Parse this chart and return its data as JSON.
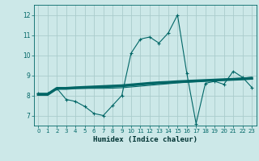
{
  "title": "",
  "xlabel": "Humidex (Indice chaleur)",
  "background_color": "#cce8e8",
  "grid_color": "#aacccc",
  "line_color": "#006666",
  "xlim": [
    -0.5,
    23.5
  ],
  "ylim": [
    6.5,
    12.5
  ],
  "xticks": [
    0,
    1,
    2,
    3,
    4,
    5,
    6,
    7,
    8,
    9,
    10,
    11,
    12,
    13,
    14,
    15,
    16,
    17,
    18,
    19,
    20,
    21,
    22,
    23
  ],
  "yticks": [
    7,
    8,
    9,
    10,
    11,
    12
  ],
  "line1_x": [
    0,
    1,
    2,
    3,
    4,
    5,
    6,
    7,
    8,
    9,
    10,
    11,
    12,
    13,
    14,
    15,
    16,
    17,
    18,
    19,
    20,
    21,
    22,
    23
  ],
  "line1_y": [
    8.1,
    8.1,
    8.35,
    7.8,
    7.7,
    7.45,
    7.1,
    7.0,
    7.5,
    8.0,
    10.1,
    10.8,
    10.9,
    10.6,
    11.1,
    12.0,
    9.1,
    6.6,
    8.6,
    8.7,
    8.55,
    9.2,
    8.9,
    8.4
  ],
  "line2_x": [
    0,
    2,
    23
  ],
  "line2_y": [
    8.05,
    8.35,
    8.85
  ],
  "line3_x": [
    0,
    2,
    23
  ],
  "line3_y": [
    8.05,
    8.35,
    8.9
  ],
  "line2_full_x": [
    0,
    1,
    2,
    3,
    4,
    5,
    6,
    7,
    8,
    9,
    10,
    11,
    12,
    13,
    14,
    15,
    16,
    17,
    18,
    19,
    20,
    21,
    22,
    23
  ],
  "line2_full_y": [
    8.05,
    8.05,
    8.35,
    8.35,
    8.38,
    8.4,
    8.42,
    8.44,
    8.46,
    8.48,
    8.52,
    8.56,
    8.6,
    8.63,
    8.65,
    8.68,
    8.7,
    8.72,
    8.74,
    8.76,
    8.78,
    8.8,
    8.82,
    8.85
  ],
  "line3_full_x": [
    0,
    1,
    2,
    3,
    4,
    5,
    6,
    7,
    8,
    9,
    10,
    11,
    12,
    13,
    14,
    15,
    16,
    17,
    18,
    19,
    20,
    21,
    22,
    23
  ],
  "line3_full_y": [
    8.05,
    8.05,
    8.35,
    8.35,
    8.35,
    8.35,
    8.35,
    8.35,
    8.36,
    8.38,
    8.42,
    8.46,
    8.5,
    8.54,
    8.58,
    8.62,
    8.65,
    8.68,
    8.72,
    8.76,
    8.8,
    8.83,
    8.86,
    8.9
  ]
}
